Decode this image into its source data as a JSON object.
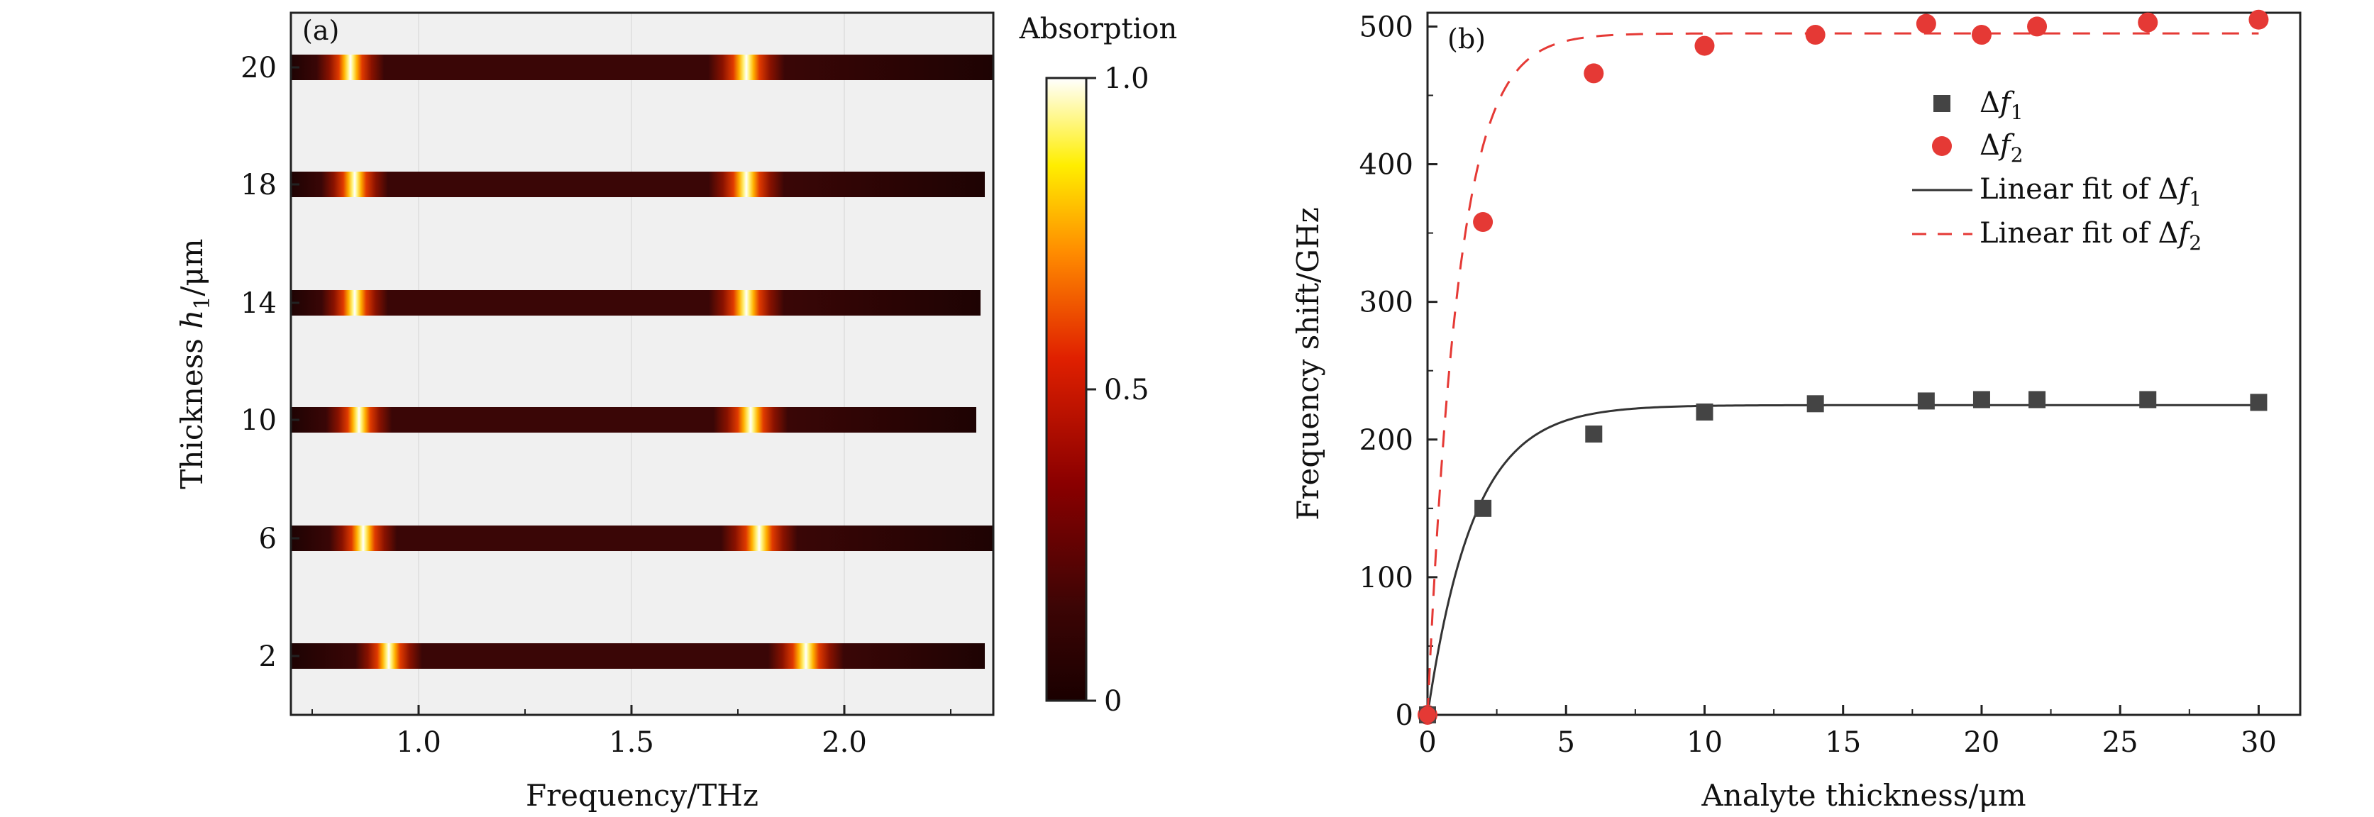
{
  "panels": {
    "a_label": "(a)",
    "b_label": "(b)"
  },
  "colors": {
    "fit_f1": "#333333",
    "fit_f2": "#e53935",
    "marker_f1": "#444444",
    "marker_f2": "#e53935",
    "heatmap_bg": "#f0f0f0"
  },
  "chart_data": [
    {
      "id": "panel-a",
      "type": "heatmap",
      "title": "",
      "xlabel": "Frequency/THz",
      "ylabel": "Thickness h1/μm",
      "xlim": [
        0.7,
        2.35
      ],
      "x_ticks": [
        1.0,
        1.5,
        2.0
      ],
      "x_tick_labels": [
        "1.0",
        "1.5",
        "2.0"
      ],
      "y_tick_labels": [
        "2",
        "6",
        "10",
        "14",
        "18",
        "20"
      ],
      "rows": [
        {
          "thickness": 20,
          "x_end": 2.35,
          "peak1": 0.84,
          "peak2": 1.77
        },
        {
          "thickness": 18,
          "x_end": 2.33,
          "peak1": 0.85,
          "peak2": 1.77
        },
        {
          "thickness": 14,
          "x_end": 2.32,
          "peak1": 0.85,
          "peak2": 1.77
        },
        {
          "thickness": 10,
          "x_end": 2.31,
          "peak1": 0.86,
          "peak2": 1.78
        },
        {
          "thickness": 6,
          "x_end": 2.35,
          "peak1": 0.87,
          "peak2": 1.8
        },
        {
          "thickness": 2,
          "x_end": 2.33,
          "peak1": 0.93,
          "peak2": 1.91
        }
      ],
      "colorbar": {
        "label": "Absorption",
        "range": [
          0,
          1.0
        ],
        "tick_labels": [
          "0",
          "0.5",
          "1.0"
        ]
      }
    },
    {
      "id": "panel-b",
      "type": "scatter",
      "title": "",
      "xlabel": "Analyte thickness/μm",
      "ylabel": "Frequency shift/GHz",
      "xlim": [
        0,
        31.5
      ],
      "ylim": [
        0,
        510
      ],
      "x_ticks": [
        0,
        5,
        10,
        15,
        20,
        25,
        30
      ],
      "y_ticks": [
        0,
        100,
        200,
        300,
        400,
        500
      ],
      "series": [
        {
          "name": "Δf1",
          "x": [
            0,
            2,
            6,
            10,
            14,
            18,
            20,
            22,
            26,
            30
          ],
          "y": [
            0,
            150,
            204,
            220,
            226,
            228,
            229,
            229,
            229,
            227
          ]
        },
        {
          "name": "Δf2",
          "x": [
            0,
            2,
            6,
            10,
            14,
            18,
            20,
            22,
            26,
            30
          ],
          "y": [
            0,
            358,
            466,
            486,
            494,
            502,
            494,
            500,
            503,
            505
          ]
        }
      ],
      "fits": [
        {
          "name": "Linear fit of Δf1",
          "asymptote": 225,
          "rate": 0.6
        },
        {
          "name": "Linear fit of Δf2",
          "asymptote": 495,
          "rate": 0.9
        }
      ],
      "legend": {
        "position": "top-right",
        "entries": [
          "Δf1",
          "Δf2",
          "Linear fit of Δf1",
          "Linear fit of Δf2"
        ]
      }
    }
  ]
}
